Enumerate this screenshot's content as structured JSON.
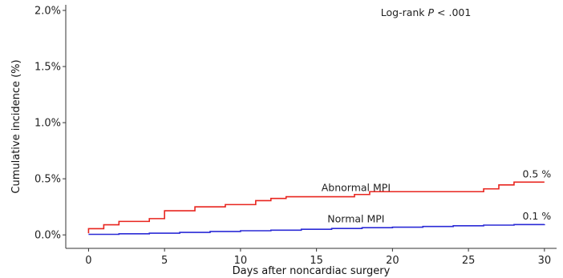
{
  "chart_data": {
    "type": "line",
    "title": "",
    "xlabel": "Days after noncardiac surgery",
    "ylabel": "Cumulative incidence (%)",
    "xlim": [
      -1.5,
      30.8
    ],
    "ylim": [
      -0.12,
      2.05
    ],
    "xticks": [
      0,
      5,
      10,
      15,
      20,
      25,
      30
    ],
    "xtick_labels": [
      "0",
      "5",
      "10",
      "15",
      "20",
      "25",
      "30"
    ],
    "yticks": [
      0.0,
      0.5,
      1.0,
      1.5,
      2.0
    ],
    "ytick_labels": [
      "0.0%",
      "0.5%",
      "1.0%",
      "1.5%",
      "2.0%"
    ],
    "grid": false,
    "step": true,
    "annotation": {
      "prefix": "Log-rank ",
      "p": "P",
      "suffix": " < .001",
      "x": 22.2,
      "y": 1.98
    },
    "series": [
      {
        "name": "Abnormal MPI",
        "color": "#e8251f",
        "end_label": "0.5 %",
        "x": [
          0,
          0,
          1,
          2,
          4,
          5,
          7,
          9,
          11,
          12,
          13,
          17.5,
          18.5,
          26,
          27,
          28,
          30
        ],
        "y": [
          0.015,
          0.055,
          0.09,
          0.12,
          0.145,
          0.215,
          0.25,
          0.27,
          0.305,
          0.325,
          0.34,
          0.36,
          0.385,
          0.41,
          0.445,
          0.47,
          0.47
        ]
      },
      {
        "name": "Normal MPI",
        "color": "#2a2ad6",
        "end_label": "0.1 %",
        "x": [
          0,
          2,
          4,
          6,
          8,
          10,
          12,
          14,
          16,
          18,
          20,
          22,
          24,
          26,
          28,
          30
        ],
        "y": [
          0.005,
          0.01,
          0.015,
          0.022,
          0.03,
          0.037,
          0.042,
          0.05,
          0.057,
          0.064,
          0.069,
          0.075,
          0.081,
          0.087,
          0.092,
          0.095
        ]
      }
    ]
  }
}
